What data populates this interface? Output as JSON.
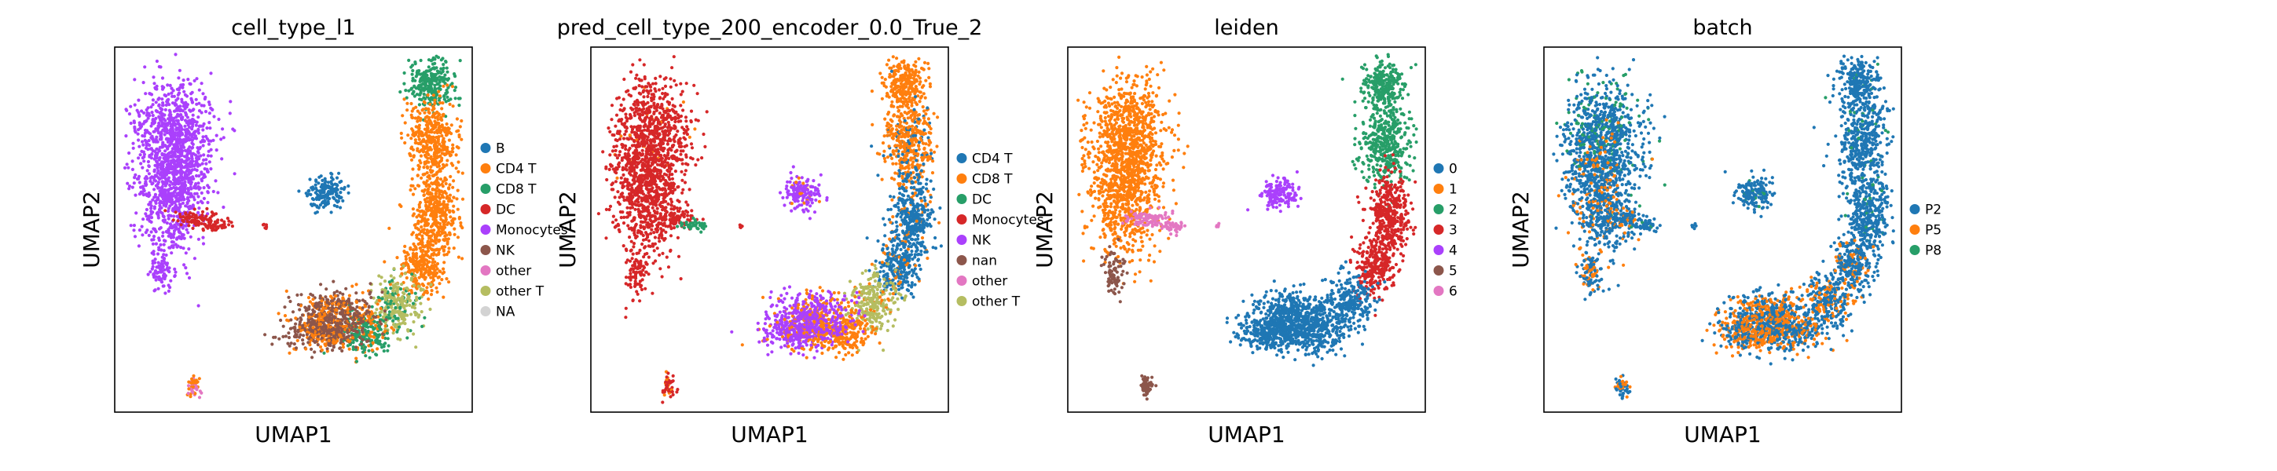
{
  "chart_data": [
    {
      "type": "scatter",
      "title": "cell_type_l1",
      "xlabel": "UMAP1",
      "ylabel": "UMAP2",
      "legend": {
        "placement": "right",
        "entries": [
          {
            "label": "B",
            "color": "#1f77b4"
          },
          {
            "label": "CD4 T",
            "color": "#ff7f0e"
          },
          {
            "label": "CD8 T",
            "color": "#279e68"
          },
          {
            "label": "DC",
            "color": "#d62728"
          },
          {
            "label": "Monocytes",
            "color": "#aa40fc"
          },
          {
            "label": "NK",
            "color": "#8c564b"
          },
          {
            "label": "other",
            "color": "#e377c2"
          },
          {
            "label": "other T",
            "color": "#b5bd61"
          },
          {
            "label": "NA",
            "color": "#d3d3d3"
          }
        ]
      }
    },
    {
      "type": "scatter",
      "title": "pred_cell_type_200_encoder_0.0_True_2",
      "xlabel": "UMAP1",
      "ylabel": "UMAP2",
      "legend": {
        "placement": "right",
        "entries": [
          {
            "label": "CD4 T",
            "color": "#1f77b4"
          },
          {
            "label": "CD8 T",
            "color": "#ff7f0e"
          },
          {
            "label": "DC",
            "color": "#279e68"
          },
          {
            "label": "Monocytes",
            "color": "#d62728"
          },
          {
            "label": "NK",
            "color": "#aa40fc"
          },
          {
            "label": "nan",
            "color": "#8c564b"
          },
          {
            "label": "other",
            "color": "#e377c2"
          },
          {
            "label": "other T",
            "color": "#b5bd61"
          }
        ]
      }
    },
    {
      "type": "scatter",
      "title": "leiden",
      "xlabel": "UMAP1",
      "ylabel": "UMAP2",
      "legend": {
        "placement": "right",
        "entries": [
          {
            "label": "0",
            "color": "#1f77b4"
          },
          {
            "label": "1",
            "color": "#ff7f0e"
          },
          {
            "label": "2",
            "color": "#279e68"
          },
          {
            "label": "3",
            "color": "#d62728"
          },
          {
            "label": "4",
            "color": "#aa40fc"
          },
          {
            "label": "5",
            "color": "#8c564b"
          },
          {
            "label": "6",
            "color": "#e377c2"
          }
        ]
      }
    },
    {
      "type": "scatter",
      "title": "batch",
      "xlabel": "UMAP1",
      "ylabel": "UMAP2",
      "legend": {
        "placement": "right",
        "entries": [
          {
            "label": "P2",
            "color": "#1f77b4"
          },
          {
            "label": "P5",
            "color": "#ff7f0e"
          },
          {
            "label": "P8",
            "color": "#279e68"
          }
        ]
      }
    }
  ]
}
